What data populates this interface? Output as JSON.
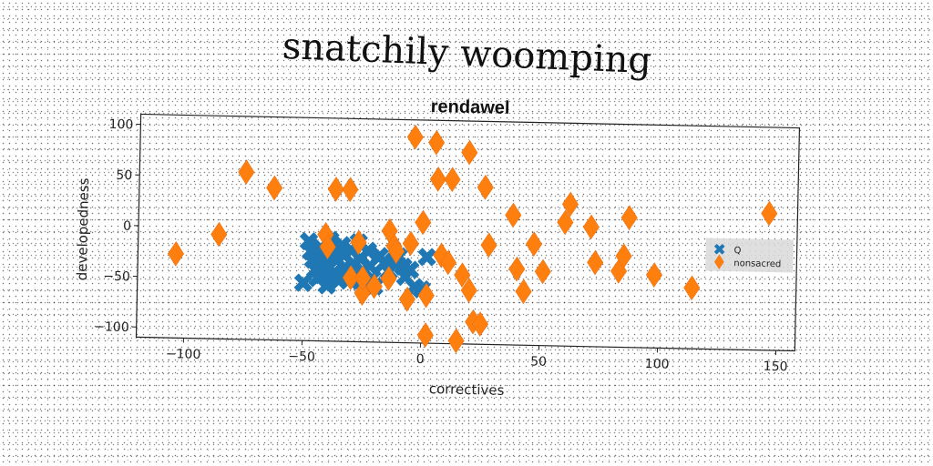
{
  "chart_data": {
    "type": "scatter",
    "title": "snatchily woomping",
    "subtitle": "rendawel",
    "xlabel": "correctives",
    "ylabel": "developedness",
    "xlim": [
      -120,
      158
    ],
    "ylim": [
      -110,
      110
    ],
    "xticks": [
      -100,
      -50,
      0,
      50,
      100,
      150
    ],
    "yticks": [
      -100,
      -50,
      0,
      50,
      100
    ],
    "grid": false,
    "legend": "center-right",
    "series": [
      {
        "name": "Q",
        "marker": "x",
        "color": "#1f77b4",
        "points": [
          [
            -50,
            -53
          ],
          [
            -48,
            -12
          ],
          [
            -47,
            -22
          ],
          [
            -46,
            -30
          ],
          [
            -45,
            -40
          ],
          [
            -44,
            -48
          ],
          [
            -43,
            -18
          ],
          [
            -42,
            -27
          ],
          [
            -41,
            -35
          ],
          [
            -40,
            -55
          ],
          [
            -39,
            -10
          ],
          [
            -38,
            -22
          ],
          [
            -37,
            -42
          ],
          [
            -36,
            -30
          ],
          [
            -35,
            -50
          ],
          [
            -34,
            -15
          ],
          [
            -33,
            -25
          ],
          [
            -32,
            -38
          ],
          [
            -31,
            -48
          ],
          [
            -30,
            -20
          ],
          [
            -29,
            -33
          ],
          [
            -28,
            -45
          ],
          [
            -27,
            -12
          ],
          [
            -26,
            -28
          ],
          [
            -25,
            -40
          ],
          [
            -24,
            -52
          ],
          [
            -23,
            -20
          ],
          [
            -22,
            -35
          ],
          [
            -21,
            -47
          ],
          [
            -20,
            -55
          ],
          [
            -18,
            -25
          ],
          [
            -16,
            -32
          ],
          [
            -14,
            -40
          ],
          [
            -12,
            -30
          ],
          [
            -10,
            -25
          ],
          [
            -8,
            -35
          ],
          [
            -7,
            -45
          ],
          [
            -5,
            -38
          ],
          [
            -3,
            -55
          ],
          [
            0,
            -57
          ],
          [
            2,
            -25
          ],
          [
            -45,
            -25
          ],
          [
            -42,
            -45
          ],
          [
            -36,
            -20
          ],
          [
            -30,
            -40
          ],
          [
            -26,
            -50
          ]
        ]
      },
      {
        "name": "nonsacred",
        "marker": "D",
        "color": "#ff7f0e",
        "points": [
          [
            -104,
            -27
          ],
          [
            -86,
            -7
          ],
          [
            -75,
            55
          ],
          [
            -63,
            40
          ],
          [
            -37,
            40
          ],
          [
            -31,
            40
          ],
          [
            -41,
            -5
          ],
          [
            -40,
            -17
          ],
          [
            -30,
            -47
          ],
          [
            -27,
            -12
          ],
          [
            -25,
            -62
          ],
          [
            -25,
            -47
          ],
          [
            -20,
            -55
          ],
          [
            -14,
            -47
          ],
          [
            -14,
            0
          ],
          [
            -12,
            -15
          ],
          [
            -11,
            -20
          ],
          [
            -6,
            -67
          ],
          [
            -5,
            -12
          ],
          [
            -4,
            93
          ],
          [
            0,
            9
          ],
          [
            2,
            -63
          ],
          [
            2,
            -102
          ],
          [
            5,
            88
          ],
          [
            6,
            52
          ],
          [
            8,
            -23
          ],
          [
            11,
            -30
          ],
          [
            12,
            52
          ],
          [
            15,
            -107
          ],
          [
            17,
            -42
          ],
          [
            19,
            79
          ],
          [
            20,
            -57
          ],
          [
            22,
            -88
          ],
          [
            25,
            -90
          ],
          [
            26,
            45
          ],
          [
            28,
            -12
          ],
          [
            38,
            18
          ],
          [
            40,
            -35
          ],
          [
            43,
            -57
          ],
          [
            47,
            -10
          ],
          [
            51,
            -37
          ],
          [
            60,
            12
          ],
          [
            62,
            30
          ],
          [
            71,
            8
          ],
          [
            73,
            -27
          ],
          [
            83,
            -35
          ],
          [
            85,
            -20
          ],
          [
            87,
            18
          ],
          [
            98,
            -38
          ],
          [
            114,
            -50
          ],
          [
            146,
            25
          ]
        ]
      }
    ]
  }
}
